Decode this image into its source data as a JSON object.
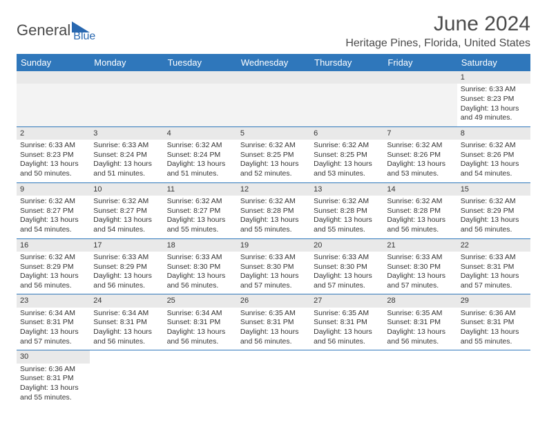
{
  "logo": {
    "dark": "General",
    "blue": "Blue"
  },
  "title": "June 2024",
  "location": "Heritage Pines, Florida, United States",
  "colors": {
    "headerBg": "#2f77bb",
    "headerText": "#ffffff",
    "dayBg": "#e9e9e9",
    "border": "#2f77bb"
  },
  "weekdays": [
    "Sunday",
    "Monday",
    "Tuesday",
    "Wednesday",
    "Thursday",
    "Friday",
    "Saturday"
  ],
  "weeks": [
    [
      null,
      null,
      null,
      null,
      null,
      null,
      {
        "n": "1",
        "sr": "Sunrise: 6:33 AM",
        "ss": "Sunset: 8:23 PM",
        "dl": "Daylight: 13 hours and 49 minutes."
      }
    ],
    [
      {
        "n": "2",
        "sr": "Sunrise: 6:33 AM",
        "ss": "Sunset: 8:23 PM",
        "dl": "Daylight: 13 hours and 50 minutes."
      },
      {
        "n": "3",
        "sr": "Sunrise: 6:33 AM",
        "ss": "Sunset: 8:24 PM",
        "dl": "Daylight: 13 hours and 51 minutes."
      },
      {
        "n": "4",
        "sr": "Sunrise: 6:32 AM",
        "ss": "Sunset: 8:24 PM",
        "dl": "Daylight: 13 hours and 51 minutes."
      },
      {
        "n": "5",
        "sr": "Sunrise: 6:32 AM",
        "ss": "Sunset: 8:25 PM",
        "dl": "Daylight: 13 hours and 52 minutes."
      },
      {
        "n": "6",
        "sr": "Sunrise: 6:32 AM",
        "ss": "Sunset: 8:25 PM",
        "dl": "Daylight: 13 hours and 53 minutes."
      },
      {
        "n": "7",
        "sr": "Sunrise: 6:32 AM",
        "ss": "Sunset: 8:26 PM",
        "dl": "Daylight: 13 hours and 53 minutes."
      },
      {
        "n": "8",
        "sr": "Sunrise: 6:32 AM",
        "ss": "Sunset: 8:26 PM",
        "dl": "Daylight: 13 hours and 54 minutes."
      }
    ],
    [
      {
        "n": "9",
        "sr": "Sunrise: 6:32 AM",
        "ss": "Sunset: 8:27 PM",
        "dl": "Daylight: 13 hours and 54 minutes."
      },
      {
        "n": "10",
        "sr": "Sunrise: 6:32 AM",
        "ss": "Sunset: 8:27 PM",
        "dl": "Daylight: 13 hours and 54 minutes."
      },
      {
        "n": "11",
        "sr": "Sunrise: 6:32 AM",
        "ss": "Sunset: 8:27 PM",
        "dl": "Daylight: 13 hours and 55 minutes."
      },
      {
        "n": "12",
        "sr": "Sunrise: 6:32 AM",
        "ss": "Sunset: 8:28 PM",
        "dl": "Daylight: 13 hours and 55 minutes."
      },
      {
        "n": "13",
        "sr": "Sunrise: 6:32 AM",
        "ss": "Sunset: 8:28 PM",
        "dl": "Daylight: 13 hours and 55 minutes."
      },
      {
        "n": "14",
        "sr": "Sunrise: 6:32 AM",
        "ss": "Sunset: 8:28 PM",
        "dl": "Daylight: 13 hours and 56 minutes."
      },
      {
        "n": "15",
        "sr": "Sunrise: 6:32 AM",
        "ss": "Sunset: 8:29 PM",
        "dl": "Daylight: 13 hours and 56 minutes."
      }
    ],
    [
      {
        "n": "16",
        "sr": "Sunrise: 6:32 AM",
        "ss": "Sunset: 8:29 PM",
        "dl": "Daylight: 13 hours and 56 minutes."
      },
      {
        "n": "17",
        "sr": "Sunrise: 6:33 AM",
        "ss": "Sunset: 8:29 PM",
        "dl": "Daylight: 13 hours and 56 minutes."
      },
      {
        "n": "18",
        "sr": "Sunrise: 6:33 AM",
        "ss": "Sunset: 8:30 PM",
        "dl": "Daylight: 13 hours and 56 minutes."
      },
      {
        "n": "19",
        "sr": "Sunrise: 6:33 AM",
        "ss": "Sunset: 8:30 PM",
        "dl": "Daylight: 13 hours and 57 minutes."
      },
      {
        "n": "20",
        "sr": "Sunrise: 6:33 AM",
        "ss": "Sunset: 8:30 PM",
        "dl": "Daylight: 13 hours and 57 minutes."
      },
      {
        "n": "21",
        "sr": "Sunrise: 6:33 AM",
        "ss": "Sunset: 8:30 PM",
        "dl": "Daylight: 13 hours and 57 minutes."
      },
      {
        "n": "22",
        "sr": "Sunrise: 6:33 AM",
        "ss": "Sunset: 8:31 PM",
        "dl": "Daylight: 13 hours and 57 minutes."
      }
    ],
    [
      {
        "n": "23",
        "sr": "Sunrise: 6:34 AM",
        "ss": "Sunset: 8:31 PM",
        "dl": "Daylight: 13 hours and 57 minutes."
      },
      {
        "n": "24",
        "sr": "Sunrise: 6:34 AM",
        "ss": "Sunset: 8:31 PM",
        "dl": "Daylight: 13 hours and 56 minutes."
      },
      {
        "n": "25",
        "sr": "Sunrise: 6:34 AM",
        "ss": "Sunset: 8:31 PM",
        "dl": "Daylight: 13 hours and 56 minutes."
      },
      {
        "n": "26",
        "sr": "Sunrise: 6:35 AM",
        "ss": "Sunset: 8:31 PM",
        "dl": "Daylight: 13 hours and 56 minutes."
      },
      {
        "n": "27",
        "sr": "Sunrise: 6:35 AM",
        "ss": "Sunset: 8:31 PM",
        "dl": "Daylight: 13 hours and 56 minutes."
      },
      {
        "n": "28",
        "sr": "Sunrise: 6:35 AM",
        "ss": "Sunset: 8:31 PM",
        "dl": "Daylight: 13 hours and 56 minutes."
      },
      {
        "n": "29",
        "sr": "Sunrise: 6:36 AM",
        "ss": "Sunset: 8:31 PM",
        "dl": "Daylight: 13 hours and 55 minutes."
      }
    ],
    [
      {
        "n": "30",
        "sr": "Sunrise: 6:36 AM",
        "ss": "Sunset: 8:31 PM",
        "dl": "Daylight: 13 hours and 55 minutes."
      },
      null,
      null,
      null,
      null,
      null,
      null
    ]
  ]
}
